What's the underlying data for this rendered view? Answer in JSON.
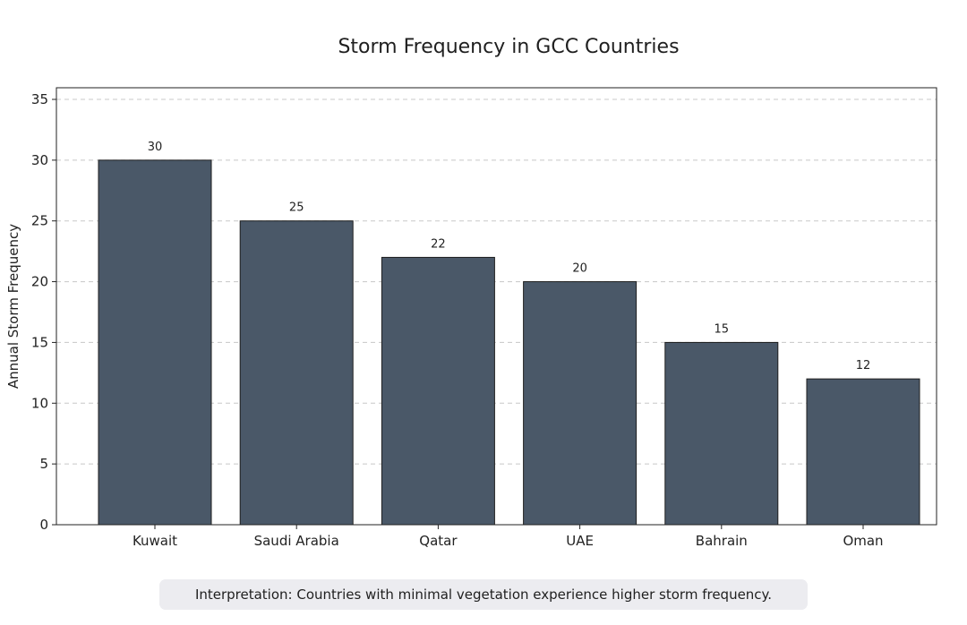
{
  "chart_data": {
    "type": "bar",
    "title": "Storm Frequency in GCC Countries",
    "xlabel": "",
    "ylabel": "Annual Storm Frequency",
    "categories": [
      "Kuwait",
      "Saudi Arabia",
      "Qatar",
      "UAE",
      "Bahrain",
      "Oman"
    ],
    "values": [
      30,
      25,
      22,
      20,
      15,
      12
    ],
    "value_labels": [
      "30",
      "25",
      "22",
      "20",
      "15",
      "12"
    ],
    "ylim": [
      0,
      35
    ],
    "yticks": [
      "0",
      "5",
      "10",
      "15",
      "20",
      "25",
      "30",
      "35"
    ],
    "grid": "y-dashed",
    "bar_color": "#4a5868"
  },
  "caption": "Interpretation: Countries with minimal vegetation experience higher storm frequency."
}
